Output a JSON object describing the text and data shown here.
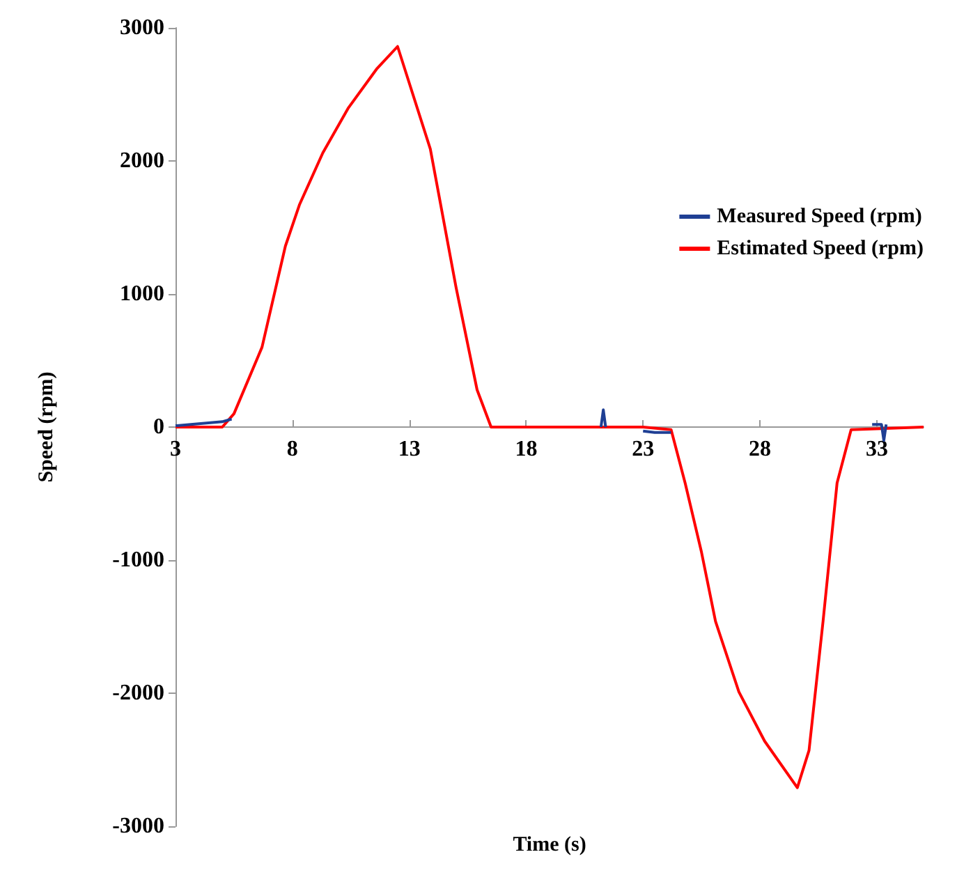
{
  "chart_data": {
    "type": "line",
    "xlabel": "Time (s)",
    "ylabel": "Speed (rpm)",
    "xlim": [
      3,
      35
    ],
    "xticks": [
      3,
      8,
      13,
      18,
      23,
      28,
      33
    ],
    "ylim": [
      -3000,
      3000
    ],
    "yticks": [
      -3000,
      -2000,
      -1000,
      0,
      1000,
      2000,
      3000
    ],
    "grid": false,
    "legend": "right",
    "marker": "none",
    "line_style": "solid",
    "series": [
      {
        "name": "Measured Speed (rpm)",
        "color": "#1f3f94",
        "x": [
          3,
          5,
          5.4,
          5.5,
          21.2,
          21.3,
          21.4,
          22,
          23,
          23.5,
          24.2,
          24.3,
          32.8,
          33.2,
          33.3,
          33.4
        ],
        "values": [
          10,
          40,
          60,
          null,
          0,
          130,
          0,
          null,
          -30,
          -40,
          -40,
          null,
          20,
          20,
          -100,
          20
        ]
      },
      {
        "name": "Estimated Speed (rpm)",
        "color": "#ff0000",
        "x": [
          3,
          5,
          5.5,
          6.7,
          7.7,
          8.3,
          9.3,
          10.4,
          11.6,
          12.5,
          13.9,
          15,
          15.9,
          16.5,
          23,
          24.2,
          24.8,
          25.5,
          26.1,
          27.1,
          28.2,
          29.6,
          30.1,
          30.7,
          31.3,
          31.9,
          35
        ],
        "values": [
          0,
          0,
          100,
          600,
          1360,
          1670,
          2060,
          2400,
          2690,
          2860,
          2090,
          1050,
          280,
          0,
          0,
          -20,
          -420,
          -940,
          -1460,
          -1990,
          -2360,
          -2710,
          -2430,
          -1460,
          -420,
          -20,
          0
        ]
      }
    ]
  }
}
